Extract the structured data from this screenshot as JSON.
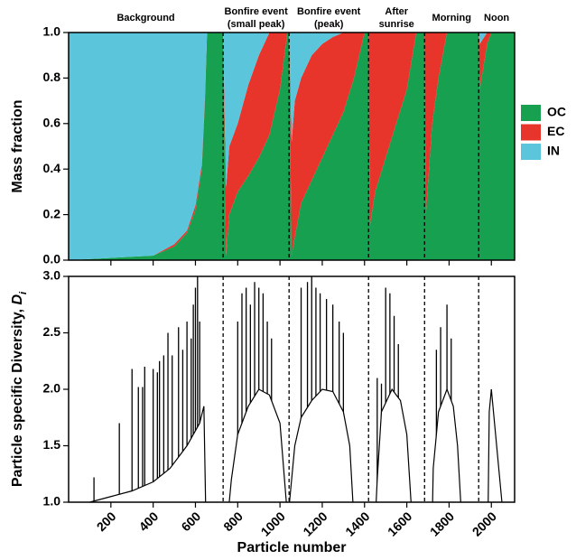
{
  "chart_data": [
    {
      "type": "area",
      "stacked": true,
      "ylabel": "Mass fraction",
      "phases": [
        [
          "Background"
        ],
        [
          "Bonfire event",
          "(small peak)"
        ],
        [
          "Bonfire event",
          "(peak)"
        ],
        [
          "After",
          "sunrise"
        ],
        [
          "Morning"
        ],
        [
          "Noon"
        ]
      ],
      "dividers": [
        731,
        1043,
        1419,
        1684,
        1940
      ],
      "xlim": [
        0,
        2110
      ],
      "ylim": [
        0,
        1
      ],
      "yticks": [
        {
          "value": 0,
          "label": "0.0"
        },
        0.2,
        0.4,
        0.6,
        0.8,
        {
          "value": 1,
          "label": "1.0"
        }
      ],
      "x": [
        0,
        400,
        500,
        560,
        600,
        630,
        645,
        655,
        731,
        745,
        760,
        800,
        850,
        900,
        950,
        1000,
        1035,
        1043,
        1055,
        1070,
        1100,
        1150,
        1200,
        1250,
        1300,
        1350,
        1400,
        1419,
        1425,
        1450,
        1500,
        1550,
        1600,
        1645,
        1684,
        1690,
        1720,
        1750,
        1790,
        1940,
        1945,
        1980,
        2000,
        2110
      ],
      "series": [
        {
          "name": "OC",
          "color": "#17a04f",
          "values": [
            0,
            0.02,
            0.06,
            0.12,
            0.22,
            0.4,
            0.7,
            1,
            1,
            0.02,
            0.2,
            0.3,
            0.37,
            0.45,
            0.55,
            0.75,
            1,
            1,
            0.02,
            0.1,
            0.25,
            0.35,
            0.45,
            0.55,
            0.65,
            0.8,
            1,
            1,
            0.15,
            0.3,
            0.45,
            0.6,
            0.75,
            1,
            1,
            0.2,
            0.6,
            0.8,
            1,
            1,
            0.75,
            0.95,
            1,
            1
          ]
        },
        {
          "name": "EC",
          "color": "#e8352c",
          "values": [
            0,
            0,
            0.01,
            0.01,
            0.02,
            0.02,
            0.02,
            0,
            0,
            0.3,
            0.3,
            0.3,
            0.4,
            0.45,
            0.45,
            0.25,
            0,
            0,
            0.5,
            0.6,
            0.55,
            0.55,
            0.5,
            0.43,
            0.35,
            0.2,
            0,
            0,
            0.85,
            0.7,
            0.55,
            0.4,
            0.25,
            0,
            0,
            0.8,
            0.4,
            0.2,
            0,
            0,
            0.2,
            0.05,
            0,
            0
          ]
        },
        {
          "name": "IN",
          "color": "#5bc6db",
          "values": [
            1,
            0.98,
            0.93,
            0.87,
            0.76,
            0.58,
            0.28,
            0,
            0,
            0.68,
            0.5,
            0.4,
            0.23,
            0.1,
            0,
            0,
            0,
            0,
            0.48,
            0.3,
            0.2,
            0.1,
            0.05,
            0.02,
            0,
            0,
            0,
            0,
            0,
            0,
            0,
            0,
            0,
            0,
            0,
            0,
            0,
            0,
            0,
            0,
            0.05,
            0,
            0,
            0
          ]
        }
      ]
    },
    {
      "type": "line",
      "ylabel": [
        "Particle specific Diversity, ",
        "D",
        "i"
      ],
      "xlabel": "Particle number",
      "xlim": [
        0,
        2110
      ],
      "ylim": [
        1,
        3
      ],
      "xticks": [
        200,
        400,
        600,
        800,
        1000,
        1200,
        1400,
        1600,
        1800,
        2000
      ],
      "yticks": [
        {
          "value": 1,
          "label": "1.0"
        },
        1.5,
        {
          "value": 2,
          "label": "2.0"
        },
        2.5,
        {
          "value": 3,
          "label": "3.0"
        }
      ],
      "color": "#000000",
      "x": [
        100,
        200,
        300,
        400,
        480,
        560,
        620,
        640,
        648,
        700,
        760,
        770,
        800,
        850,
        900,
        950,
        1000,
        1030,
        1040,
        1045,
        1070,
        1100,
        1150,
        1200,
        1250,
        1300,
        1330,
        1345,
        1400,
        1455,
        1460,
        1480,
        1530,
        1570,
        1600,
        1620,
        1700,
        1722,
        1725,
        1750,
        1790,
        1820,
        1840,
        1855,
        1950,
        1985,
        1990,
        2000,
        2020,
        2040,
        2050
      ],
      "values": [
        1.0,
        1.05,
        1.1,
        1.18,
        1.3,
        1.5,
        1.7,
        1.85,
        1.0,
        null,
        1.0,
        1.2,
        1.6,
        1.85,
        2.0,
        1.95,
        1.7,
        1.0,
        null,
        1.0,
        1.5,
        1.75,
        1.9,
        2.0,
        1.98,
        1.8,
        1.5,
        1.0,
        null,
        1.0,
        1.2,
        1.8,
        2.0,
        1.9,
        1.6,
        1.0,
        null,
        1.0,
        1.3,
        1.8,
        2.0,
        1.85,
        1.5,
        1.0,
        null,
        1.0,
        1.8,
        2.0,
        1.6,
        1.2,
        1.0
      ],
      "spikes": {
        "x": [
          120,
          240,
          300,
          330,
          350,
          360,
          400,
          420,
          430,
          450,
          470,
          490,
          520,
          540,
          560,
          580,
          590,
          600,
          610,
          620,
          800,
          820,
          840,
          860,
          880,
          900,
          920,
          940,
          960,
          1100,
          1130,
          1150,
          1170,
          1190,
          1220,
          1250,
          1280,
          1300,
          1460,
          1480,
          1500,
          1520,
          1540,
          1560,
          1740,
          1760,
          1790,
          1810,
          2000
        ],
        "values": [
          1.22,
          1.7,
          2.18,
          2.02,
          2.02,
          2.2,
          2.18,
          2.15,
          2.25,
          2.3,
          2.5,
          2.3,
          2.55,
          2.35,
          2.6,
          2.45,
          2.75,
          2.9,
          3.0,
          2.6,
          2.6,
          2.85,
          2.9,
          2.75,
          2.95,
          2.9,
          2.85,
          2.6,
          2.45,
          2.9,
          2.95,
          3.0,
          2.9,
          2.85,
          2.8,
          2.75,
          2.6,
          2.5,
          2.1,
          2.05,
          2.9,
          2.85,
          2.65,
          2.4,
          2.35,
          2.55,
          2.75,
          2.45,
          2.0
        ]
      }
    }
  ]
}
